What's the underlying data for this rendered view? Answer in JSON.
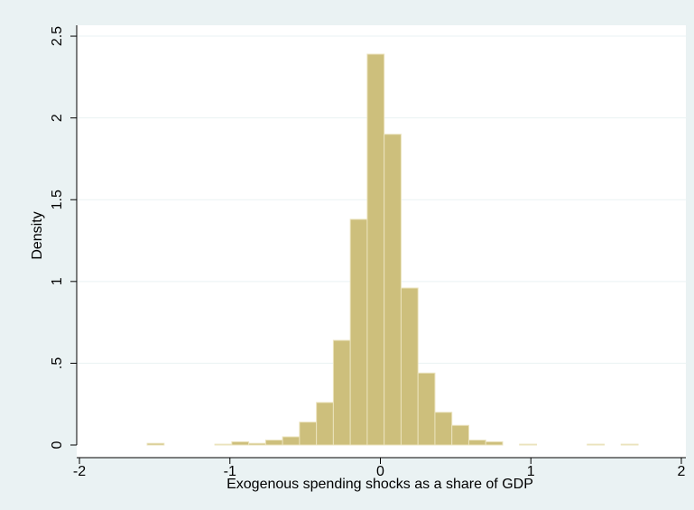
{
  "chart_data": {
    "type": "histogram",
    "xlabel": "Exogenous spending shocks as a share of GDP",
    "ylabel": "Density",
    "bins": [
      -1.55,
      -1.4375,
      -1.325,
      -1.2125,
      -1.1,
      -0.9875,
      -0.875,
      -0.7625,
      -0.65,
      -0.5375,
      -0.425,
      -0.3125,
      -0.2,
      -0.0875,
      0.025,
      0.1375,
      0.25,
      0.3625,
      0.475,
      0.5875,
      0.7,
      0.8125,
      0.925,
      1.0375,
      1.15,
      1.2625,
      1.375,
      1.4875,
      1.6,
      1.7125,
      1.825
    ],
    "values": [
      0.01,
      0,
      0,
      0,
      0.005,
      0.02,
      0.01,
      0.03,
      0.05,
      0.14,
      0.26,
      0.64,
      1.38,
      2.39,
      1.9,
      0.96,
      0.44,
      0.2,
      0.12,
      0.03,
      0.02,
      0,
      0.005,
      0,
      0,
      0,
      0.005,
      0,
      0.005,
      0
    ],
    "color": "#cdbf7c",
    "xlim": [
      -2.05,
      2.05
    ],
    "xticks": [
      -2,
      -1,
      0,
      1,
      2
    ],
    "ylim": [
      0,
      2.55
    ],
    "yticks": [
      0,
      {
        "value": 0.5,
        "label": ".5"
      },
      1,
      1.5,
      2,
      2.5
    ],
    "grid": true
  }
}
